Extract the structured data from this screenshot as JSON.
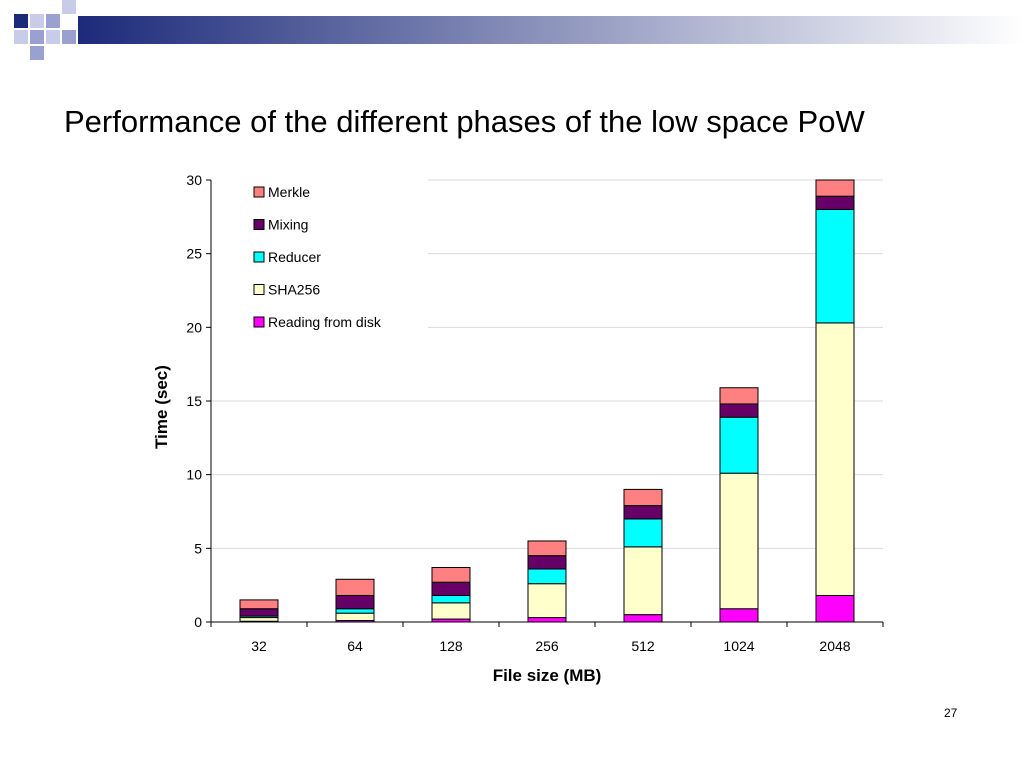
{
  "slide": {
    "title": "Performance of the different phases of the low space PoW",
    "page_number": "27"
  },
  "colors": {
    "header_bar_start": "#1c2a7a",
    "header_bar_end": "#ffffff",
    "grid": "#d9d9d9",
    "axis": "#000000"
  },
  "chart_data": {
    "type": "bar",
    "stacked": true,
    "categories": [
      "32",
      "64",
      "128",
      "256",
      "512",
      "1024",
      "2048"
    ],
    "xlabel": "File size (MB)",
    "ylabel": "Time (sec)",
    "ylim": [
      0,
      30
    ],
    "yticks": [
      0,
      5,
      10,
      15,
      20,
      25,
      30
    ],
    "grid": true,
    "legend": "top-left",
    "series": [
      {
        "name": "Reading from disk",
        "color": "#ff00ff",
        "values": [
          0.05,
          0.1,
          0.2,
          0.3,
          0.5,
          0.9,
          1.8
        ]
      },
      {
        "name": "SHA256",
        "color": "#ffffcc",
        "values": [
          0.25,
          0.5,
          1.1,
          2.3,
          4.6,
          9.2,
          18.5
        ]
      },
      {
        "name": "Reducer",
        "color": "#00ffff",
        "values": [
          0.1,
          0.3,
          0.5,
          1.0,
          1.9,
          3.8,
          7.7
        ]
      },
      {
        "name": "Mixing",
        "color": "#660066",
        "values": [
          0.5,
          0.9,
          0.9,
          0.9,
          0.9,
          0.9,
          0.9
        ]
      },
      {
        "name": "Merkle",
        "color": "#ff8080",
        "values": [
          0.6,
          1.1,
          1.0,
          1.0,
          1.1,
          1.1,
          1.1
        ]
      }
    ]
  }
}
